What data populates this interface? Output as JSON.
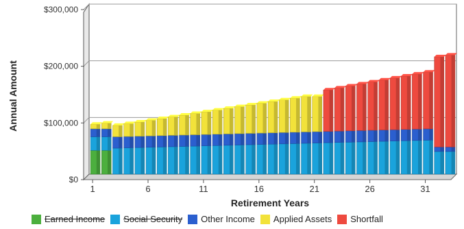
{
  "chart_data": {
    "type": "bar",
    "stacked": true,
    "xlabel": "Retirement Years",
    "ylabel": "Annual Amount",
    "ylim": [
      0,
      300000
    ],
    "y_ticks": [
      0,
      100000,
      200000,
      300000
    ],
    "y_tick_labels": [
      "$0",
      "$100,000",
      "$200,000",
      "$300,000"
    ],
    "x_ticks": [
      1,
      6,
      11,
      16,
      21,
      26,
      31
    ],
    "x": [
      1,
      2,
      3,
      4,
      5,
      6,
      7,
      8,
      9,
      10,
      11,
      12,
      13,
      14,
      15,
      16,
      17,
      18,
      19,
      20,
      21,
      22,
      23,
      24,
      25,
      26,
      27,
      28,
      29,
      30,
      31,
      32,
      33
    ],
    "grid": true,
    "legend_position": "bottom",
    "series": [
      {
        "name": "Earned Income",
        "color": "#4caf3e",
        "legend_strikethrough": true,
        "values": [
          42000,
          42000,
          0,
          0,
          0,
          0,
          0,
          0,
          0,
          0,
          0,
          0,
          0,
          0,
          0,
          0,
          0,
          0,
          0,
          0,
          0,
          0,
          0,
          0,
          0,
          0,
          0,
          0,
          0,
          0,
          0,
          0,
          0
        ]
      },
      {
        "name": "Social Security",
        "color": "#1aa3dc",
        "legend_strikethrough": true,
        "values": [
          24000,
          24000,
          46000,
          46500,
          47000,
          47500,
          48000,
          48500,
          49000,
          49500,
          50000,
          50500,
          51000,
          51500,
          52000,
          52500,
          53000,
          53500,
          54000,
          54500,
          55000,
          55500,
          56000,
          56500,
          57000,
          57500,
          58000,
          58500,
          59000,
          59500,
          60000,
          40000,
          40000
        ]
      },
      {
        "name": "Other Income",
        "color": "#2b5fcf",
        "values": [
          14000,
          14000,
          20000,
          20000,
          20000,
          20000,
          20000,
          20000,
          20000,
          20000,
          20000,
          20000,
          20000,
          20000,
          20000,
          20000,
          20000,
          20000,
          20000,
          20000,
          20000,
          20000,
          20000,
          20000,
          20000,
          20000,
          20000,
          20000,
          20000,
          20000,
          20000,
          8000,
          8000
        ]
      },
      {
        "name": "Applied Assets",
        "color": "#f2e23a",
        "values": [
          8000,
          10000,
          20000,
          22500,
          25000,
          27500,
          30000,
          32500,
          35000,
          37500,
          40000,
          42500,
          45000,
          47500,
          50000,
          52500,
          55000,
          57500,
          60000,
          62500,
          62000,
          0,
          0,
          0,
          0,
          0,
          0,
          0,
          0,
          0,
          0,
          0,
          0
        ]
      },
      {
        "name": "Shortfall",
        "color": "#ee4a3f",
        "values": [
          0,
          0,
          0,
          0,
          0,
          0,
          0,
          0,
          0,
          0,
          0,
          0,
          0,
          0,
          0,
          0,
          0,
          0,
          0,
          0,
          0,
          73000,
          76000,
          79000,
          82000,
          85000,
          88000,
          91000,
          94000,
          97000,
          100000,
          159000,
          162000
        ]
      }
    ]
  }
}
